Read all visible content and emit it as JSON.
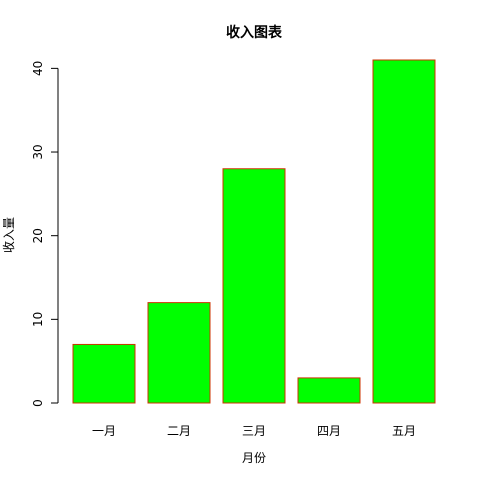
{
  "chart_data": {
    "type": "bar",
    "title": "收入图表",
    "xlabel": "月份",
    "ylabel": "收入量",
    "categories": [
      "一月",
      "二月",
      "三月",
      "四月",
      "五月"
    ],
    "values": [
      7,
      12,
      28,
      3,
      41
    ],
    "ylim": [
      0,
      41
    ],
    "yticks": [
      0,
      10,
      20,
      30,
      40
    ],
    "grid": false,
    "legend": "none",
    "bar_fill": "#00ff00",
    "bar_border": "#cc3300"
  }
}
